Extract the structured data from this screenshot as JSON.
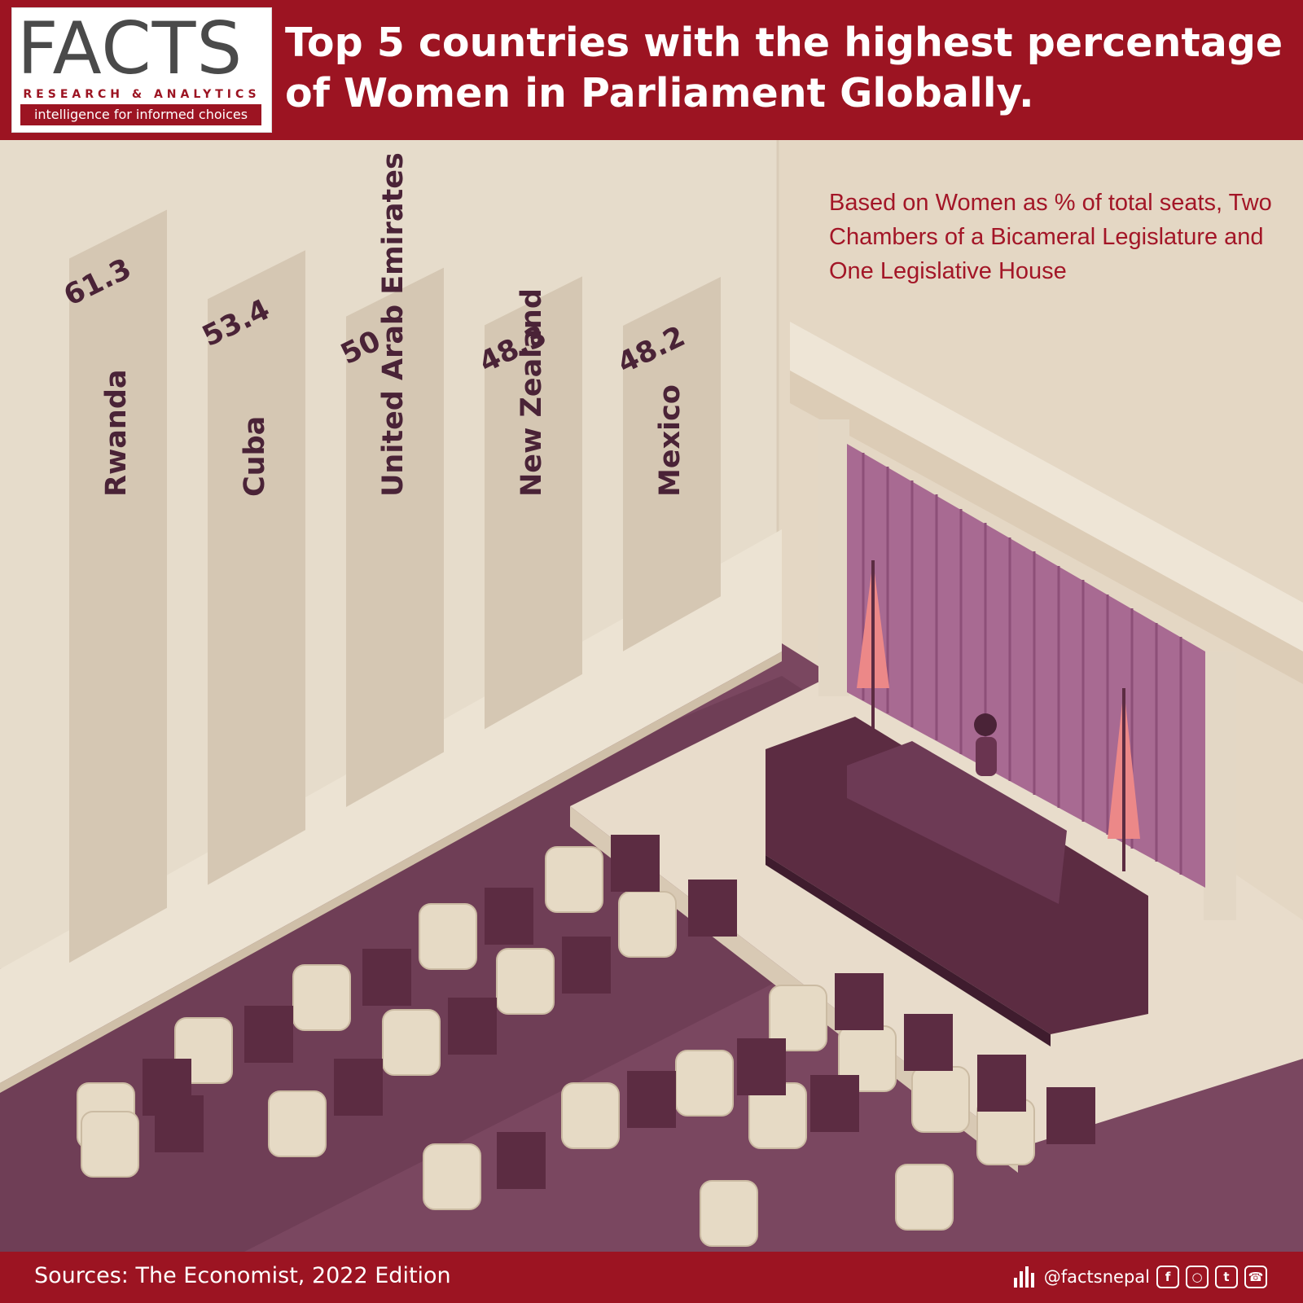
{
  "header": {
    "logo_word": "FACTS",
    "logo_sub": "RESEARCH & ANALYTICS",
    "logo_tagline": "intelligence for informed choices",
    "title": "Top 5 countries with the highest percentage of Women in Parliament Globally."
  },
  "note": "Based on Women as % of total seats, Two Chambers of a Bicameral Legislature and One Legislative House",
  "chart_data": {
    "type": "bar",
    "categories": [
      "Rwanda",
      "Cuba",
      "United Arab Emirates",
      "New Zealand",
      "Mexico"
    ],
    "values": [
      61.3,
      53.4,
      50,
      48.3,
      48.2
    ],
    "value_labels": [
      "61.3",
      "53.4",
      "50",
      "48.3",
      "48.2"
    ],
    "title": "Top 5 countries with the highest percentage of Women in Parliament Globally.",
    "xlabel": "",
    "ylabel": ""
  },
  "footer": {
    "source": "Sources: The Economist, 2022 Edition",
    "handle": "@factsnepal",
    "social_icons": [
      "facebook-icon",
      "instagram-icon",
      "twitter-icon",
      "viber-icon"
    ]
  },
  "colors": {
    "header_bg": "#9c1422",
    "bar": "#d5c7b3",
    "wall": "#e9dfcf",
    "floor": "#7a4760",
    "podium": "#5c2c42",
    "curtain": "#9c5d86",
    "text_dark": "#4a2337"
  }
}
